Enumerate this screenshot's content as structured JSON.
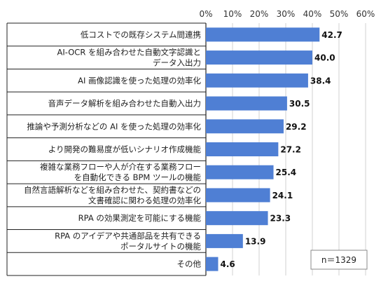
{
  "chart_data": {
    "type": "bar",
    "orientation": "horizontal",
    "categories": [
      [
        "低コストでの既存システム間連携"
      ],
      [
        "AI-OCR を組み合わせた自動文字認識と",
        "データ入出力"
      ],
      [
        "AI 画像認識を使った処理の効率化"
      ],
      [
        "音声データ解析を組み合わせた自動入出力"
      ],
      [
        "推論や予測分析などの AI を使った処理の効率化"
      ],
      [
        "より開発の難易度が低いシナリオ作成機能"
      ],
      [
        "複雑な業務フローや人が介在する業務フロー",
        "を自動化できる BPM ツールの機能"
      ],
      [
        "自然言語解析などを組み合わせた、契約書などの",
        "文書確認に関わる処理の効率化"
      ],
      [
        "RPA の効果測定を可能にする機能"
      ],
      [
        "RPA のアイデアや共通部品を共有できる",
        "ポータルサイトの機能"
      ],
      [
        "その他"
      ]
    ],
    "values": [
      42.7,
      40.0,
      38.4,
      30.5,
      29.2,
      27.2,
      25.4,
      24.1,
      23.3,
      13.9,
      4.6
    ],
    "value_labels": [
      "42.7",
      "40.0",
      "38.4",
      "30.5",
      "29.2",
      "27.2",
      "25.4",
      "24.1",
      "23.3",
      "13.9",
      "4.6"
    ],
    "ticks": [
      "0%",
      "10%",
      "20%",
      "30%",
      "40%",
      "50%",
      "60%"
    ],
    "xlim": [
      0,
      60
    ],
    "annotation": "n＝1329",
    "bar_color": "#4f7fd4",
    "grid": true,
    "grid_color": "#d0d0d0",
    "axis_position": "top"
  }
}
